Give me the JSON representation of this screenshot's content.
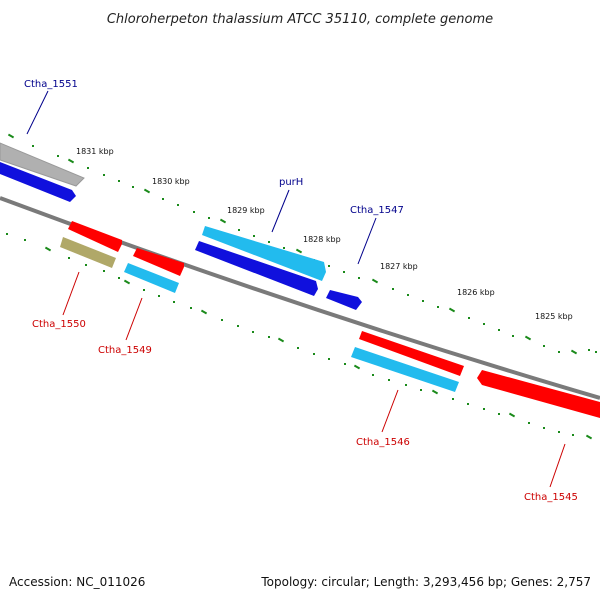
{
  "title": "Chloroherpeton thalassium ATCC 35110, complete genome",
  "footer": {
    "accession": "Accession: NC_011026",
    "summary": "Topology: circular; Length: 3,293,456 bp; Genes: 2,757"
  },
  "scale_labels": [
    "1831 kbp",
    "1830 kbp",
    "1829 kbp",
    "1828 kbp",
    "1827 kbp",
    "1826 kbp",
    "1825 kbp"
  ],
  "colors": {
    "backbone": "#7a7a7a",
    "tick": "#1a8a1a",
    "forward_label": "#00008b",
    "reverse_label": "#cc0000",
    "gene_red": "#ff0000",
    "gene_cyan": "#22bbee",
    "gene_blue": "#1010dd",
    "gene_grey": "#b0b0b0",
    "gene_olive": "#b0a868"
  },
  "gene_labels": {
    "ctha_1551": "Ctha_1551",
    "purH": "purH",
    "ctha_1547": "Ctha_1547",
    "ctha_1550": "Ctha_1550",
    "ctha_1549": "Ctha_1549",
    "ctha_1546": "Ctha_1546",
    "ctha_1545": "Ctha_1545"
  }
}
